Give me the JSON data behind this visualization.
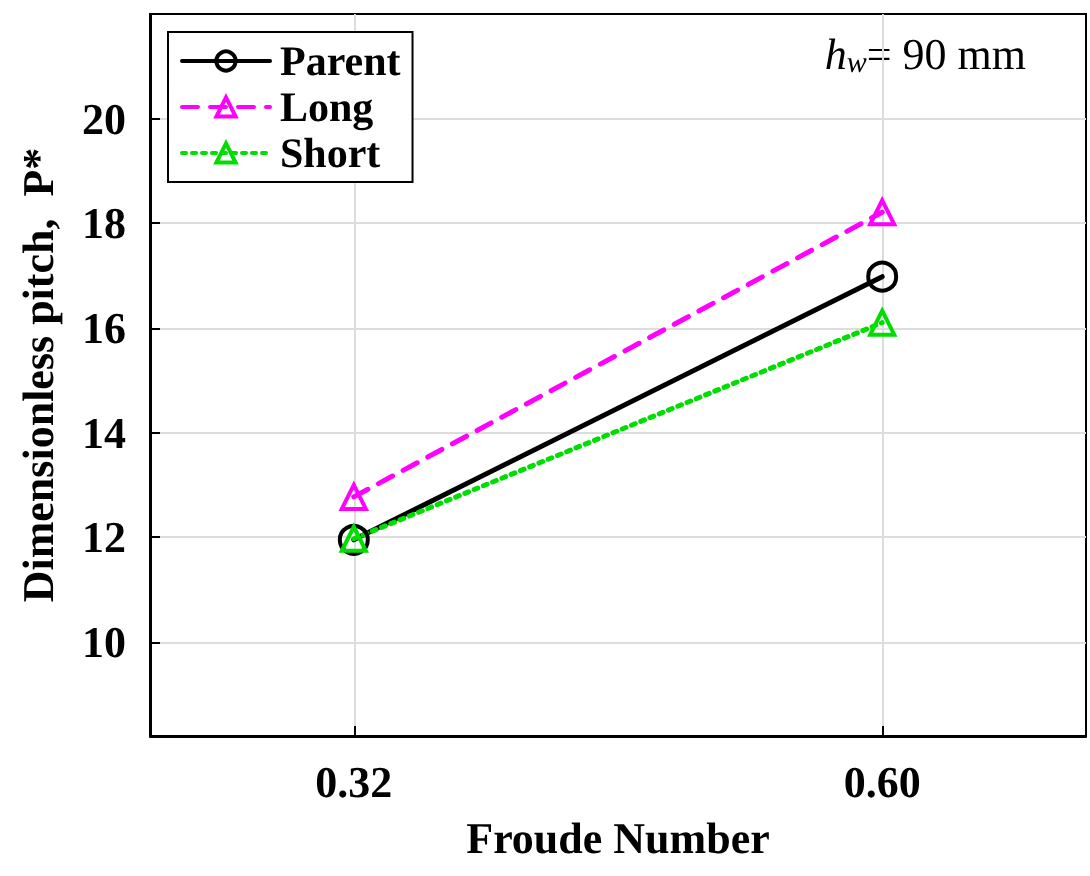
{
  "chart_data": {
    "type": "line",
    "xlabel": "Froude Number",
    "ylabel": "Dimensionless pitch,  P*",
    "annotations": [
      "h$_{w}$= 90 mm"
    ],
    "x": [
      0.32,
      0.6
    ],
    "xlim": [
      0.212,
      0.708
    ],
    "xticks": [
      0.32,
      {
        "value": 0.6,
        "label": "0.60"
      }
    ],
    "ylim": [
      8.2,
      22
    ],
    "yticks": [
      10,
      12,
      14,
      16,
      18,
      20
    ],
    "grid": true,
    "legend": "top left",
    "series": [
      {
        "name": "Parent",
        "color": "#000000",
        "values": [
          11.95,
          16.98
        ],
        "marker": "circle",
        "line_style": "solid"
      },
      {
        "name": "Long",
        "color": "#ff00ff",
        "values": [
          12.77,
          18.21
        ],
        "marker": "triangle",
        "line_style": "dashed"
      },
      {
        "name": "Short",
        "color": "#00dd00",
        "values": [
          11.97,
          16.1
        ],
        "marker": "triangle",
        "line_style": "dotted"
      }
    ]
  }
}
